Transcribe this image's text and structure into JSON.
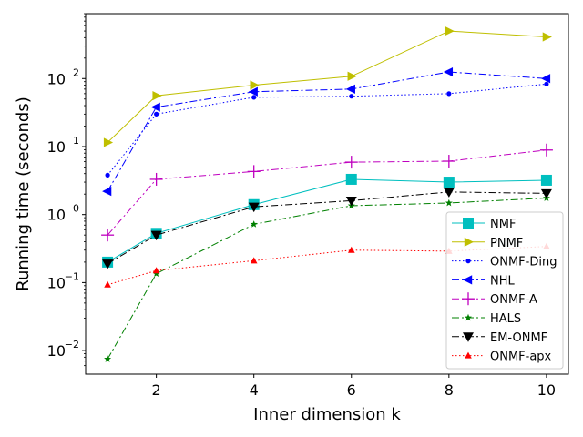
{
  "chart_data": {
    "type": "line",
    "title": "",
    "xlabel": "Inner dimension k",
    "ylabel": "Running time (seconds)",
    "y_scale": "log",
    "xlim": [
      0.55,
      10.45
    ],
    "ylim": [
      0.0045,
      900
    ],
    "x_ticks": [
      2,
      4,
      6,
      8,
      10
    ],
    "x_tick_labels": [
      "2",
      "4",
      "6",
      "8",
      "10"
    ],
    "y_ticks": [
      0.01,
      0.1,
      1,
      10,
      100
    ],
    "y_tick_labels": [
      "10",
      "10",
      "10",
      "10",
      "10"
    ],
    "y_tick_exponents": [
      "−2",
      "−1",
      "0",
      "1",
      "2"
    ],
    "legend_position": "lower-right",
    "x": [
      1,
      2,
      4,
      6,
      8,
      10
    ],
    "series": [
      {
        "name": "NMF",
        "color": "#00bfbf",
        "marker": "square",
        "dash": "solid",
        "values": [
          0.2,
          0.53,
          1.4,
          3.3,
          3.0,
          3.2
        ]
      },
      {
        "name": "PNMF",
        "color": "#bfbf00",
        "marker": "triangle-right",
        "dash": "solid",
        "values": [
          11.5,
          56,
          80,
          108,
          500,
          410
        ]
      },
      {
        "name": "ONMF-Ding",
        "color": "#0000ff",
        "marker": "point",
        "dash": "dotted",
        "values": [
          3.8,
          30,
          53,
          55,
          60,
          83
        ]
      },
      {
        "name": "NHL",
        "color": "#0000ff",
        "marker": "triangle-left",
        "dash": "dashdot",
        "values": [
          2.2,
          38,
          64,
          70,
          125,
          100
        ]
      },
      {
        "name": "ONMF-A",
        "color": "#bf00bf",
        "marker": "plus",
        "dash": "dashdot",
        "values": [
          0.5,
          3.3,
          4.3,
          5.9,
          6.1,
          8.9
        ]
      },
      {
        "name": "HALS",
        "color": "#008000",
        "marker": "star",
        "dash": "dashdot",
        "values": [
          0.0075,
          0.135,
          0.72,
          1.35,
          1.48,
          1.75
        ]
      },
      {
        "name": "EM-ONMF",
        "color": "#000000",
        "marker": "triangle-down",
        "dash": "dashdot",
        "values": [
          0.19,
          0.5,
          1.3,
          1.6,
          2.15,
          2.05
        ]
      },
      {
        "name": "ONMF-apx",
        "color": "#ff0000",
        "marker": "triangle-up",
        "dash": "dotted",
        "values": [
          0.093,
          0.15,
          0.21,
          0.3,
          0.29,
          0.34
        ]
      }
    ]
  }
}
